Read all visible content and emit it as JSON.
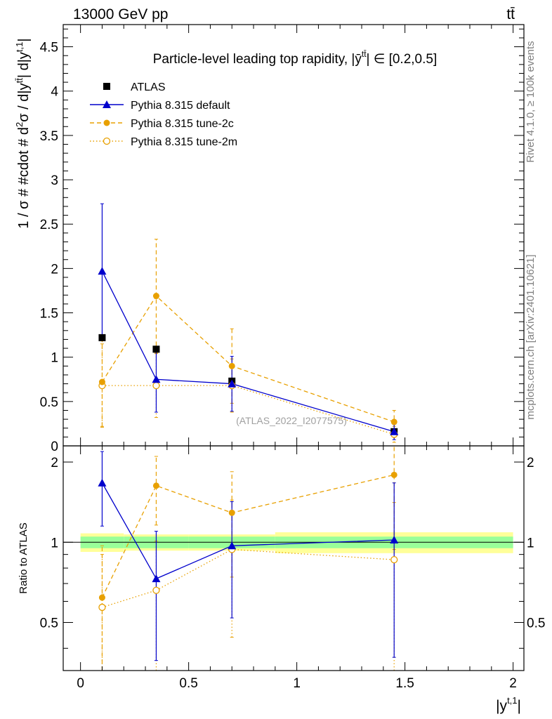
{
  "header": {
    "energy": "13000 GeV pp",
    "process": "tt̄"
  },
  "side_labels": {
    "rivet": "Rivet 4.1.0, ≥ 100k events",
    "source": "mcplots.cern.ch [arXiv:2401.10621]"
  },
  "chart_data": {
    "type": "scatter",
    "title": "Particle-level leading top rapidity, |ȳ^{tt̄}| ∈ [0.2,0.5]",
    "title_main": "Particle-level leading top rapidity, |",
    "title_sym": "ȳ",
    "title_sup": "tt̄",
    "title_tail": "| ∈ [0.2,0.5]",
    "ylabel": "1 / σ # #cdot # d²σ / d|y^{tt̄}| d|y^{t,1}|",
    "ylabel_main": "1 / σ # #cdot # d",
    "ylabel_sup2": "2",
    "ylabel_mid": "σ / d|y",
    "ylabel_sup_tt": "tt̄",
    "ylabel_mid2": "| d|y",
    "ylabel_sup_t1": "t,1",
    "ylabel_end": "|",
    "ratio_ylabel": "Ratio to ATLAS",
    "xlabel_main": "|y",
    "xlabel_sup": "t,1",
    "xlabel_end": "|",
    "watermark": "(ATLAS_2022_I2077575)",
    "xlim": [
      -0.08,
      2.05
    ],
    "ylim": [
      0,
      4.75
    ],
    "ratio_ylim": [
      0.33,
      2.3
    ],
    "x_ticks": [
      "0",
      "0.5",
      "1",
      "1.5",
      "2"
    ],
    "x_tick_values": [
      0,
      0.5,
      1,
      1.5,
      2
    ],
    "y_ticks": [
      "0",
      "0.5",
      "1",
      "1.5",
      "2",
      "2.5",
      "3",
      "3.5",
      "4",
      "4.5"
    ],
    "y_tick_values": [
      0,
      0.5,
      1,
      1.5,
      2,
      2.5,
      3,
      3.5,
      4,
      4.5
    ],
    "ratio_ticks": [
      "0.5",
      "1",
      "2"
    ],
    "ratio_tick_values": [
      0.5,
      1,
      2
    ],
    "bins": [
      [
        0,
        0.2
      ],
      [
        0.2,
        0.5
      ],
      [
        0.5,
        0.9
      ],
      [
        0.9,
        2.0
      ]
    ],
    "x": [
      0.1,
      0.35,
      0.7,
      1.45
    ],
    "data": {
      "name": "ATLAS",
      "values": [
        1.22,
        1.09,
        0.73,
        0.16
      ],
      "errors": [
        0.03,
        0.03,
        0.02,
        0.01
      ],
      "band_inner": [
        0.05,
        0.05,
        0.05,
        0.05
      ],
      "band_outer": [
        0.08,
        0.07,
        0.07,
        0.09
      ]
    },
    "series": [
      {
        "name": "Pythia 8.315 default",
        "color": "#0000cc",
        "marker": "triangle",
        "line": "solid",
        "values": [
          1.97,
          0.75,
          0.7,
          0.16
        ],
        "err_up": [
          0.76,
          0.37,
          0.31,
          0.09
        ],
        "err_down": [
          0.76,
          0.37,
          0.31,
          0.09
        ],
        "ratio": [
          1.67,
          0.73,
          0.97,
          1.02
        ],
        "ratio_err": [
          0.52,
          0.37,
          0.45,
          0.65
        ]
      },
      {
        "name": "Pythia 8.315 tune-2c",
        "color": "#e8a000",
        "marker": "circle",
        "line": "dashed",
        "values": [
          0.72,
          1.69,
          0.9,
          0.27
        ],
        "err_up": [
          0.5,
          0.64,
          0.42,
          0.13
        ],
        "err_down": [
          0.5,
          0.64,
          0.42,
          0.13
        ],
        "ratio": [
          0.62,
          1.63,
          1.29,
          1.79
        ],
        "ratio_err": [
          0.35,
          0.47,
          0.55,
          0.85
        ]
      },
      {
        "name": "Pythia 8.315 tune-2m",
        "color": "#e8a000",
        "marker": "open-circle",
        "line": "dotted",
        "values": [
          0.68,
          0.68,
          0.68,
          0.13
        ],
        "err_up": [
          0.47,
          0.36,
          0.3,
          0.09
        ],
        "err_down": [
          0.47,
          0.36,
          0.3,
          0.09
        ],
        "ratio": [
          0.57,
          0.66,
          0.94,
          0.86
        ],
        "ratio_err": [
          0.33,
          0.35,
          0.5,
          0.55
        ]
      }
    ],
    "legend": [
      "ATLAS",
      "Pythia 8.315 default",
      "Pythia 8.315 tune-2c",
      "Pythia 8.315 tune-2m"
    ]
  }
}
